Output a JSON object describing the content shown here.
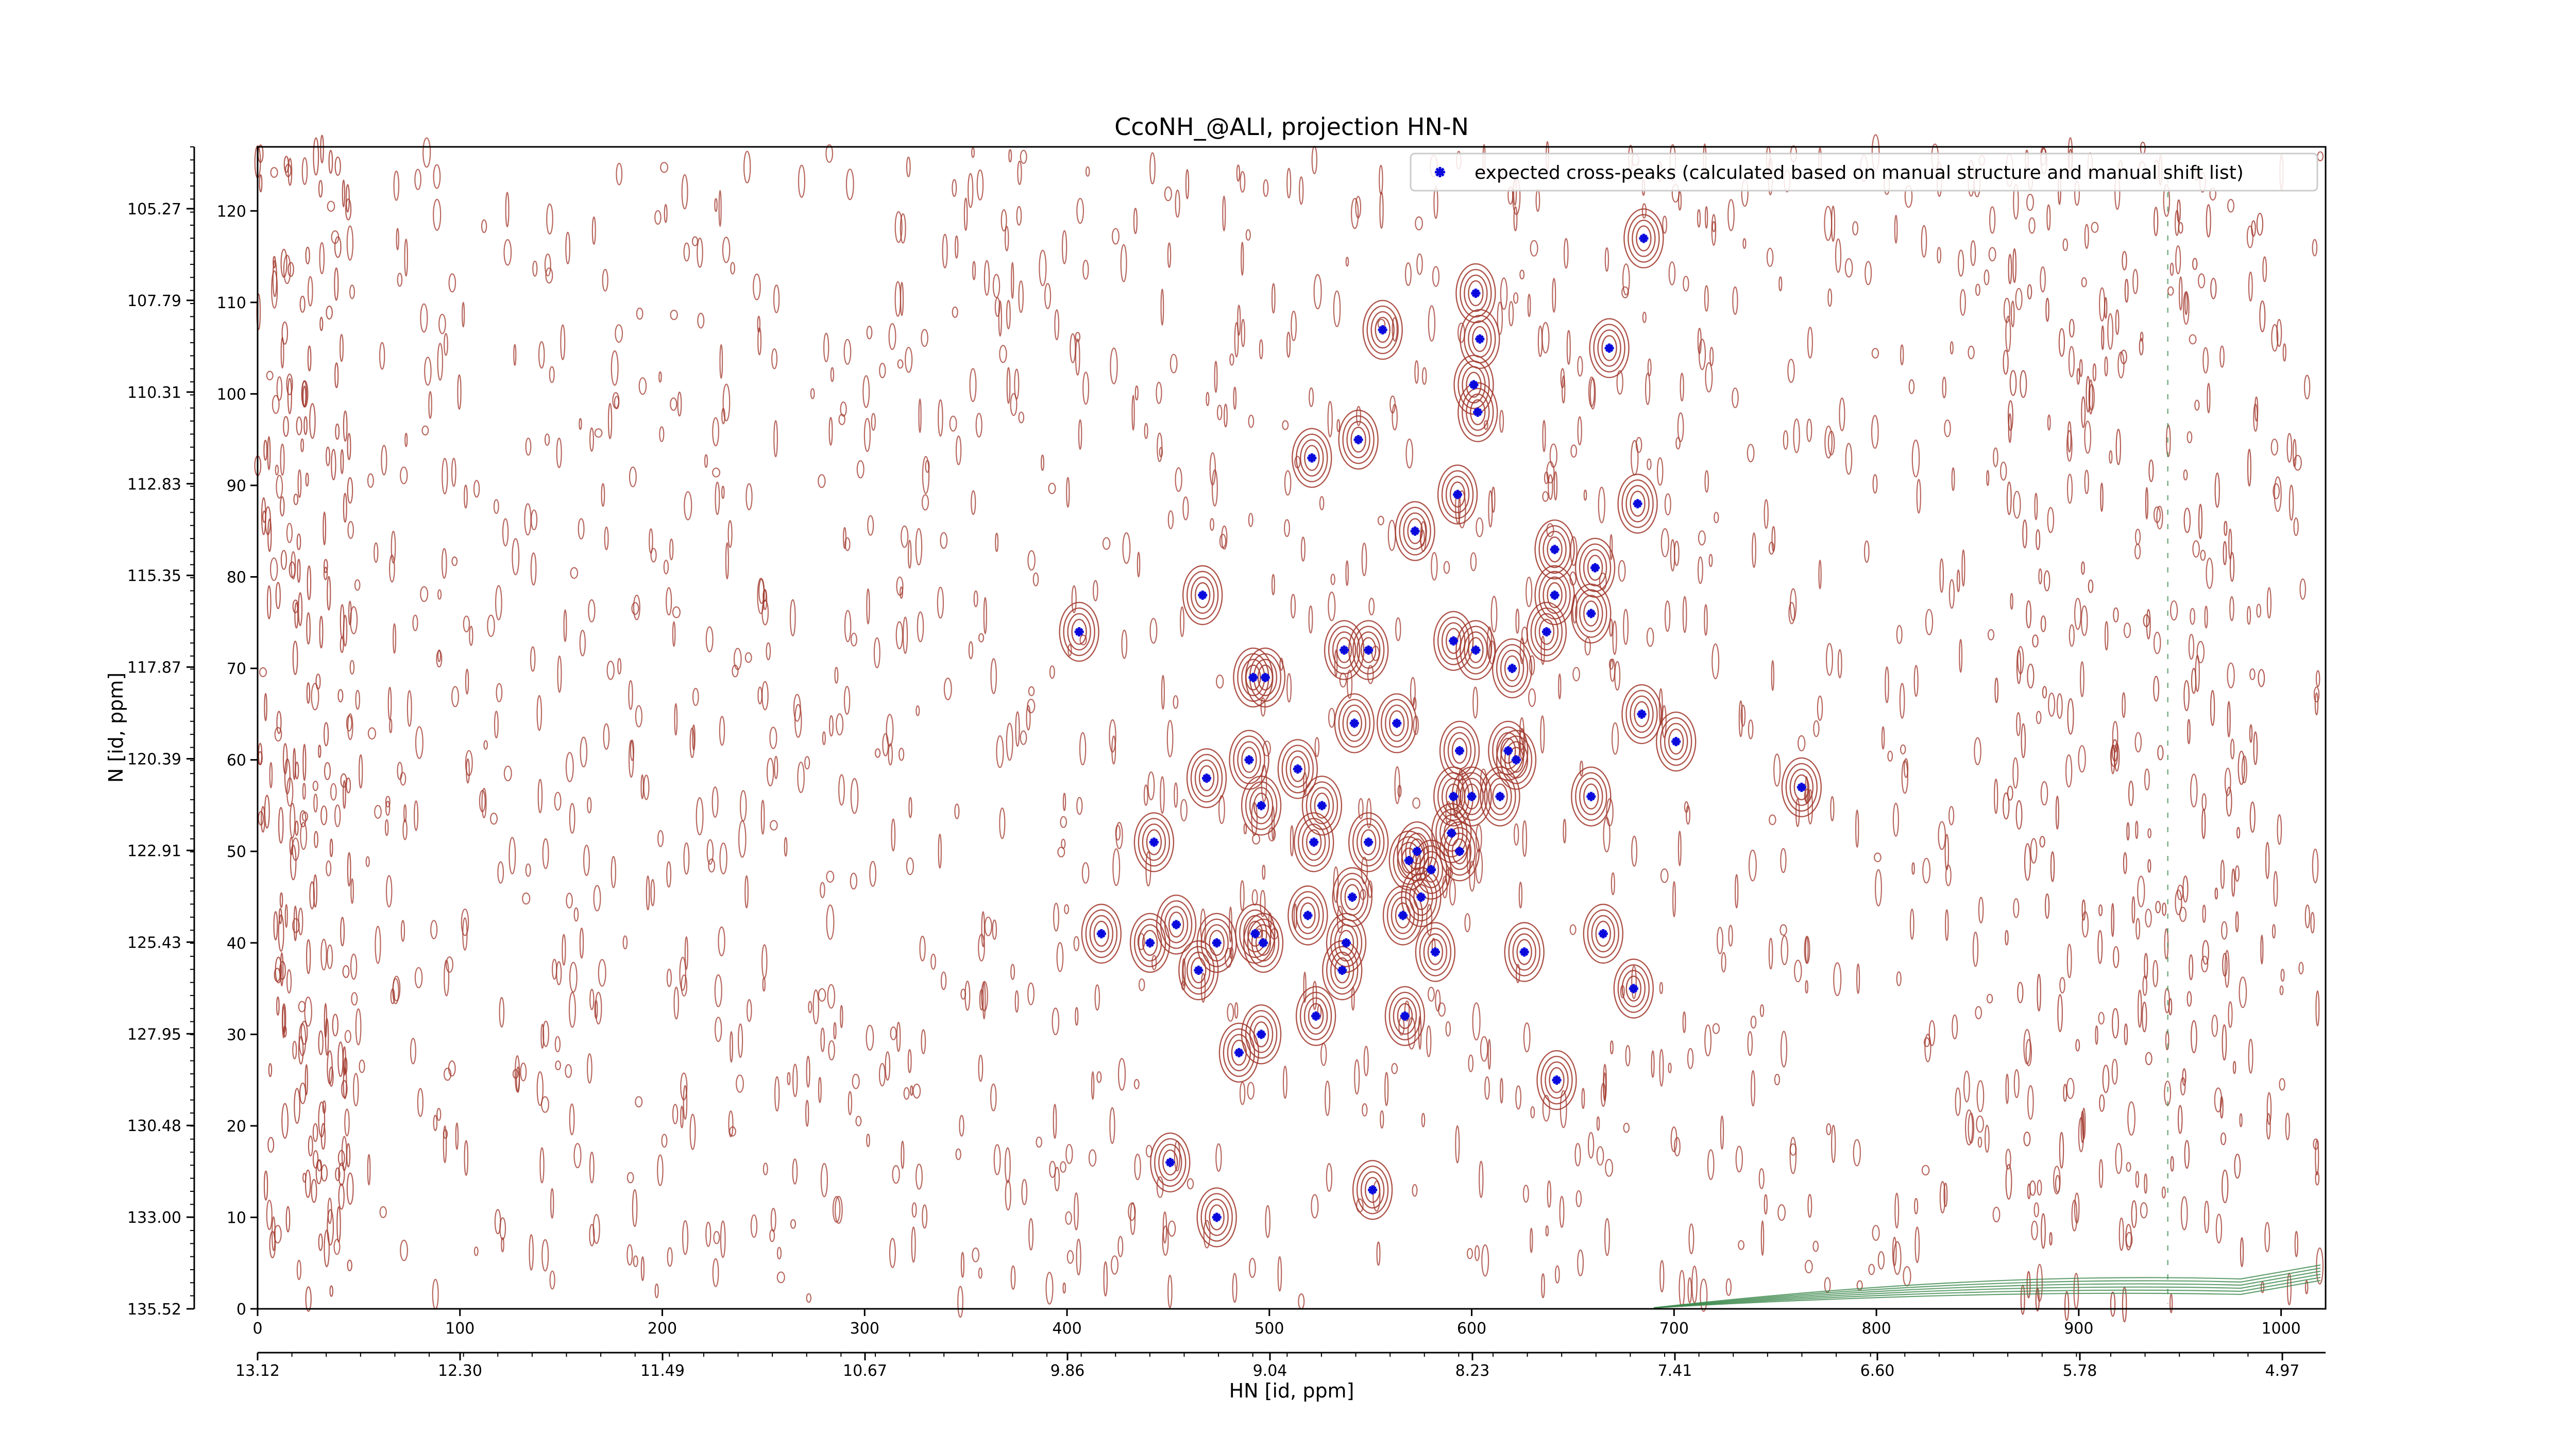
{
  "chart_data": {
    "type": "scatter",
    "title": "CcoNH_@ALI, projection HN-N",
    "xlabel": "HN [id, ppm]",
    "ylabel": "N [id, ppm]",
    "legend": {
      "label": "expected cross-peaks (calculated based on manual structure and manual shift list)",
      "placement": "upper-right",
      "marker_color": "#0a0adc"
    },
    "colors": {
      "noise_contour": "#a0362a",
      "negative_contour": "#3d8a4e",
      "peak": "#0a0adc"
    },
    "x_index_axis": {
      "ticks": [
        "0",
        "100",
        "200",
        "300",
        "400",
        "500",
        "600",
        "700",
        "800",
        "900",
        "1000"
      ],
      "ticks_ppm": []
    },
    "x_ppm_axis": {
      "ticks": [
        "13.12",
        "12.30",
        "11.49",
        "10.67",
        "9.86",
        "9.04",
        "8.23",
        "7.41",
        "6.60",
        "5.78",
        "4.97"
      ]
    },
    "y_index_axis": {
      "ticks": [
        "0",
        "10",
        "20",
        "30",
        "40",
        "50",
        "60",
        "70",
        "80",
        "90",
        "100",
        "110",
        "120"
      ]
    },
    "y_ppm_axis": {
      "ticks": [
        "105.27",
        "107.79",
        "110.31",
        "112.83",
        "115.35",
        "117.87",
        "120.39",
        "122.91",
        "125.43",
        "127.95",
        "130.48",
        "133.00",
        "135.52"
      ]
    },
    "xlim": [
      0,
      1022
    ],
    "ylim": [
      0,
      127
    ],
    "x_reversed_ppm": true,
    "grid": false,
    "series": [
      {
        "name": "expected cross-peaks (calculated based on manual structure and manual shift list)",
        "points": [
          [
            685,
            117
          ],
          [
            602,
            111
          ],
          [
            556,
            107
          ],
          [
            604,
            106
          ],
          [
            668,
            105
          ],
          [
            601,
            101
          ],
          [
            603,
            98
          ],
          [
            544,
            95
          ],
          [
            521,
            93
          ],
          [
            593,
            89
          ],
          [
            682,
            88
          ],
          [
            572,
            85
          ],
          [
            641,
            83
          ],
          [
            661,
            81
          ],
          [
            641,
            78
          ],
          [
            467,
            78
          ],
          [
            659,
            76
          ],
          [
            637,
            74
          ],
          [
            406,
            74
          ],
          [
            591,
            73
          ],
          [
            602,
            72
          ],
          [
            537,
            72
          ],
          [
            549,
            72
          ],
          [
            620,
            70
          ],
          [
            498,
            69
          ],
          [
            492,
            69
          ],
          [
            684,
            65
          ],
          [
            542,
            64
          ],
          [
            563,
            64
          ],
          [
            701,
            62
          ],
          [
            594,
            61
          ],
          [
            618,
            61
          ],
          [
            622,
            60
          ],
          [
            490,
            60
          ],
          [
            514,
            59
          ],
          [
            469,
            58
          ],
          [
            763,
            57
          ],
          [
            591,
            56
          ],
          [
            600,
            56
          ],
          [
            614,
            56
          ],
          [
            659,
            56
          ],
          [
            526,
            55
          ],
          [
            496,
            55
          ],
          [
            443,
            51
          ],
          [
            522,
            51
          ],
          [
            549,
            51
          ],
          [
            590,
            52
          ],
          [
            594,
            50
          ],
          [
            573,
            50
          ],
          [
            569,
            49
          ],
          [
            580,
            48
          ],
          [
            541,
            45
          ],
          [
            575,
            45
          ],
          [
            566,
            43
          ],
          [
            519,
            43
          ],
          [
            454,
            42
          ],
          [
            493,
            41
          ],
          [
            417,
            41
          ],
          [
            497,
            40
          ],
          [
            441,
            40
          ],
          [
            538,
            40
          ],
          [
            474,
            40
          ],
          [
            626,
            39
          ],
          [
            582,
            39
          ],
          [
            665,
            41
          ],
          [
            536,
            37
          ],
          [
            465,
            37
          ],
          [
            680,
            35
          ],
          [
            523,
            32
          ],
          [
            567,
            32
          ],
          [
            496,
            30
          ],
          [
            485,
            28
          ],
          [
            642,
            25
          ],
          [
            451,
            16
          ],
          [
            551,
            13
          ],
          [
            474,
            10
          ]
        ]
      }
    ]
  }
}
